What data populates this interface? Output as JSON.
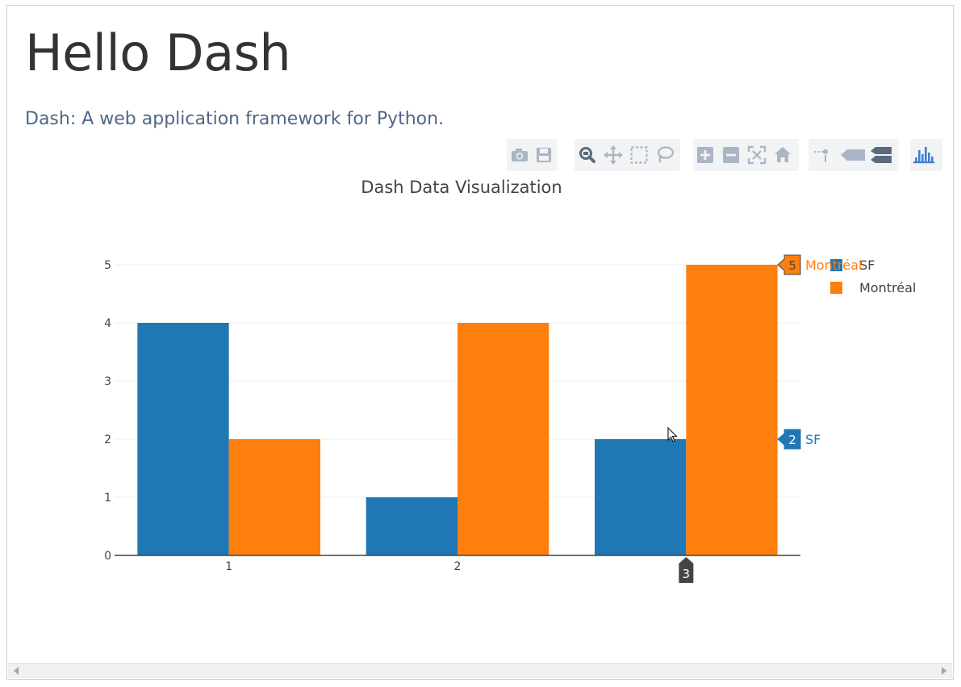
{
  "page": {
    "title": "Hello Dash",
    "subtitle": "Dash: A web application framework for Python."
  },
  "modebar": {
    "buttons": [
      {
        "name": "camera-icon",
        "title": "Download plot as a png"
      },
      {
        "name": "save-icon",
        "title": "Save and edit plot in cloud"
      },
      {
        "name": "zoom-icon",
        "title": "Zoom"
      },
      {
        "name": "pan-icon",
        "title": "Pan"
      },
      {
        "name": "box-select-icon",
        "title": "Box Select"
      },
      {
        "name": "lasso-select-icon",
        "title": "Lasso Select"
      },
      {
        "name": "zoom-in-icon",
        "title": "Zoom in"
      },
      {
        "name": "zoom-out-icon",
        "title": "Zoom out"
      },
      {
        "name": "autoscale-icon",
        "title": "Autoscale"
      },
      {
        "name": "reset-axes-icon",
        "title": "Reset axes"
      },
      {
        "name": "toggle-spike-lines-icon",
        "title": "Toggle Spike Lines"
      },
      {
        "name": "show-closest-icon",
        "title": "Show closest data on hover"
      },
      {
        "name": "compare-data-icon",
        "title": "Compare data on hover"
      },
      {
        "name": "plotly-logo-icon",
        "title": "Produced with Plotly"
      }
    ],
    "icon_color": "#aab5c5",
    "active_color": "#5b6a7e",
    "logo_color": "#3f7ed6"
  },
  "chart_data": {
    "type": "bar",
    "title": "Dash Data Visualization",
    "x": [
      1,
      2,
      3
    ],
    "x_tick_labels": [
      "1",
      "2",
      "3"
    ],
    "y_tick_labels": [
      "0",
      "1",
      "2",
      "3",
      "4",
      "5"
    ],
    "ylim": [
      0,
      5
    ],
    "grid": true,
    "legend_position": "top-right",
    "series": [
      {
        "name": "SF",
        "values": [
          4,
          1,
          2
        ],
        "color": "#1f77b4"
      },
      {
        "name": "Montréal",
        "values": [
          2,
          4,
          5
        ],
        "color": "#ff7f0e"
      }
    ],
    "hover": {
      "x_label": "3",
      "labels": [
        {
          "series": "Montréal",
          "value": "5",
          "name": "Montréal"
        },
        {
          "series": "SF",
          "value": "2",
          "name": "SF"
        }
      ]
    }
  }
}
